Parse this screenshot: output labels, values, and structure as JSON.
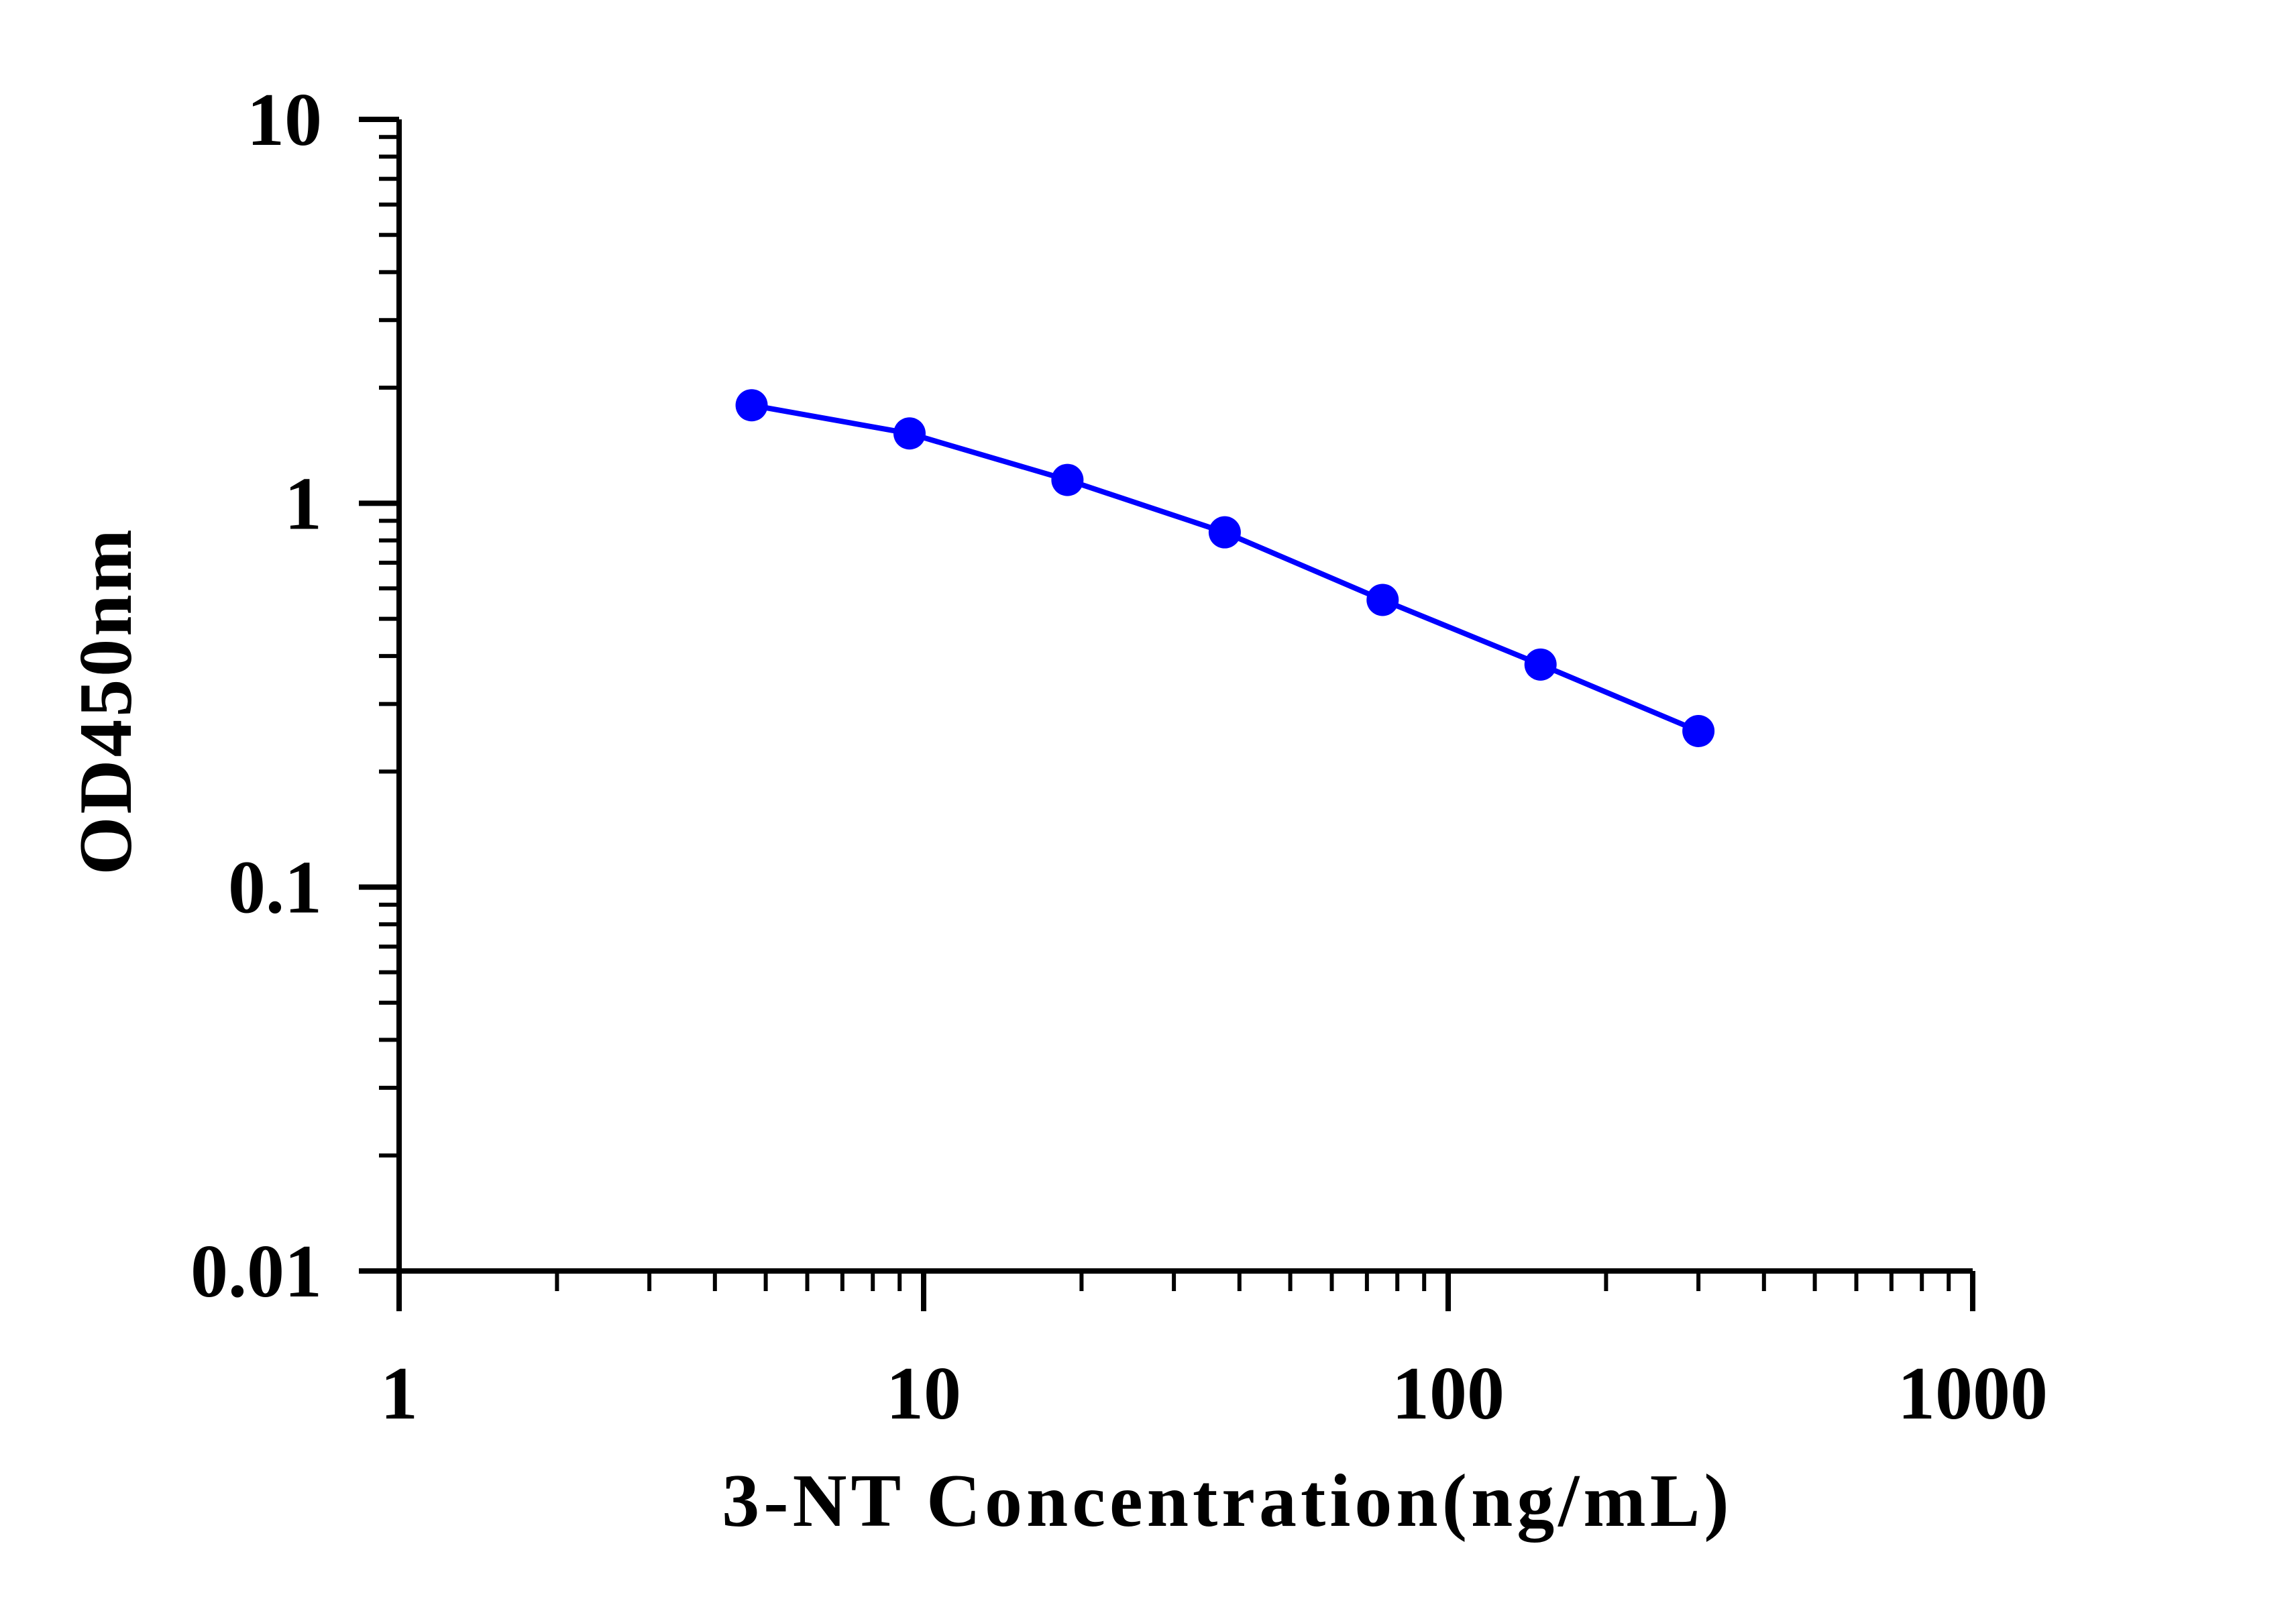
{
  "chart_data": {
    "type": "line",
    "title": "",
    "xlabel": "3-NT Concentration(ng/mL)",
    "ylabel": "OD450nm",
    "x_scale": "log",
    "y_scale": "log",
    "xlim": [
      1,
      1000
    ],
    "ylim": [
      0.01,
      10
    ],
    "x_ticks": [
      {
        "value": 1,
        "label": "1"
      },
      {
        "value": 10,
        "label": "10"
      },
      {
        "value": 100,
        "label": "100"
      },
      {
        "value": 1000,
        "label": "1000"
      }
    ],
    "y_ticks": [
      {
        "value": 0.01,
        "label": "0.01"
      },
      {
        "value": 0.1,
        "label": "0.1"
      },
      {
        "value": 1,
        "label": "1"
      },
      {
        "value": 10,
        "label": "10"
      }
    ],
    "grid": false,
    "legend": "none",
    "series": [
      {
        "color": "#0000ff",
        "marker": "circle",
        "x": [
          4.7,
          9.4,
          18.8,
          37.5,
          75,
          150,
          300
        ],
        "y": [
          1.8,
          1.52,
          1.15,
          0.84,
          0.56,
          0.38,
          0.255
        ]
      }
    ]
  }
}
